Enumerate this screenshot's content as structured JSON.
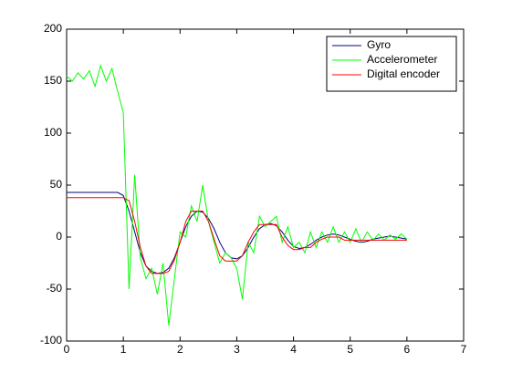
{
  "chart_data": {
    "type": "line",
    "x": [
      0,
      0.1,
      0.2,
      0.3,
      0.4,
      0.5,
      0.6,
      0.7,
      0.8,
      0.9,
      1,
      1.1,
      1.2,
      1.3,
      1.4,
      1.5,
      1.6,
      1.7,
      1.8,
      1.9,
      2,
      2.1,
      2.2,
      2.3,
      2.4,
      2.5,
      2.6,
      2.7,
      2.8,
      2.9,
      3,
      3.1,
      3.2,
      3.3,
      3.4,
      3.5,
      3.6,
      3.7,
      3.8,
      3.9,
      4,
      4.1,
      4.2,
      4.3,
      4.4,
      4.5,
      4.6,
      4.7,
      4.8,
      4.9,
      5,
      5.1,
      5.2,
      5.3,
      5.4,
      5.5,
      5.6,
      5.7,
      5.8,
      5.9,
      6
    ],
    "series": [
      {
        "name": "Gyro",
        "color": "#00007f",
        "values": [
          43,
          43,
          43,
          43,
          43,
          43,
          43,
          43,
          43,
          43,
          40,
          25,
          5,
          -15,
          -28,
          -33,
          -35,
          -34,
          -30,
          -20,
          -5,
          10,
          20,
          25,
          24,
          18,
          8,
          -5,
          -15,
          -20,
          -21,
          -18,
          -10,
          0,
          8,
          12,
          13,
          11,
          5,
          -3,
          -9,
          -11,
          -10,
          -7,
          -3,
          0,
          2,
          3,
          2,
          0,
          -2,
          -4,
          -5,
          -4,
          -2,
          -1,
          0,
          1,
          0,
          -1,
          -2
        ]
      },
      {
        "name": "Accelerometer",
        "color": "#00ff00",
        "values": [
          155,
          150,
          158,
          152,
          160,
          145,
          165,
          150,
          162,
          140,
          120,
          -50,
          60,
          -20,
          -40,
          -30,
          -55,
          -25,
          -85,
          -40,
          5,
          0,
          30,
          15,
          50,
          15,
          -5,
          -25,
          -15,
          -20,
          -30,
          -60,
          -5,
          -15,
          20,
          10,
          15,
          20,
          -5,
          10,
          -10,
          -5,
          -15,
          5,
          -10,
          5,
          -5,
          10,
          -5,
          5,
          -5,
          8,
          -5,
          5,
          -3,
          3,
          -3,
          2,
          -2,
          3,
          -2
        ]
      },
      {
        "name": "Digital encoder",
        "color": "#ff0000",
        "values": [
          38,
          38,
          38,
          38,
          38,
          38,
          38,
          38,
          38,
          38,
          38,
          35,
          15,
          -10,
          -28,
          -35,
          -35,
          -35,
          -33,
          -22,
          -5,
          15,
          25,
          25,
          25,
          15,
          -2,
          -18,
          -23,
          -23,
          -23,
          -18,
          -5,
          5,
          12,
          12,
          12,
          12,
          0,
          -8,
          -12,
          -12,
          -10,
          -10,
          -5,
          -2,
          0,
          0,
          0,
          -3,
          -3,
          -3,
          -3,
          -3,
          -3,
          -3,
          -3,
          -3,
          -3,
          -3,
          -3
        ]
      }
    ],
    "xlim": [
      0,
      7
    ],
    "xticks": [
      0,
      1,
      2,
      3,
      4,
      5,
      6,
      7
    ],
    "ylim": [
      -100,
      200
    ],
    "yticks": [
      -100,
      -50,
      0,
      50,
      100,
      150,
      200
    ],
    "legend": "upper right"
  }
}
